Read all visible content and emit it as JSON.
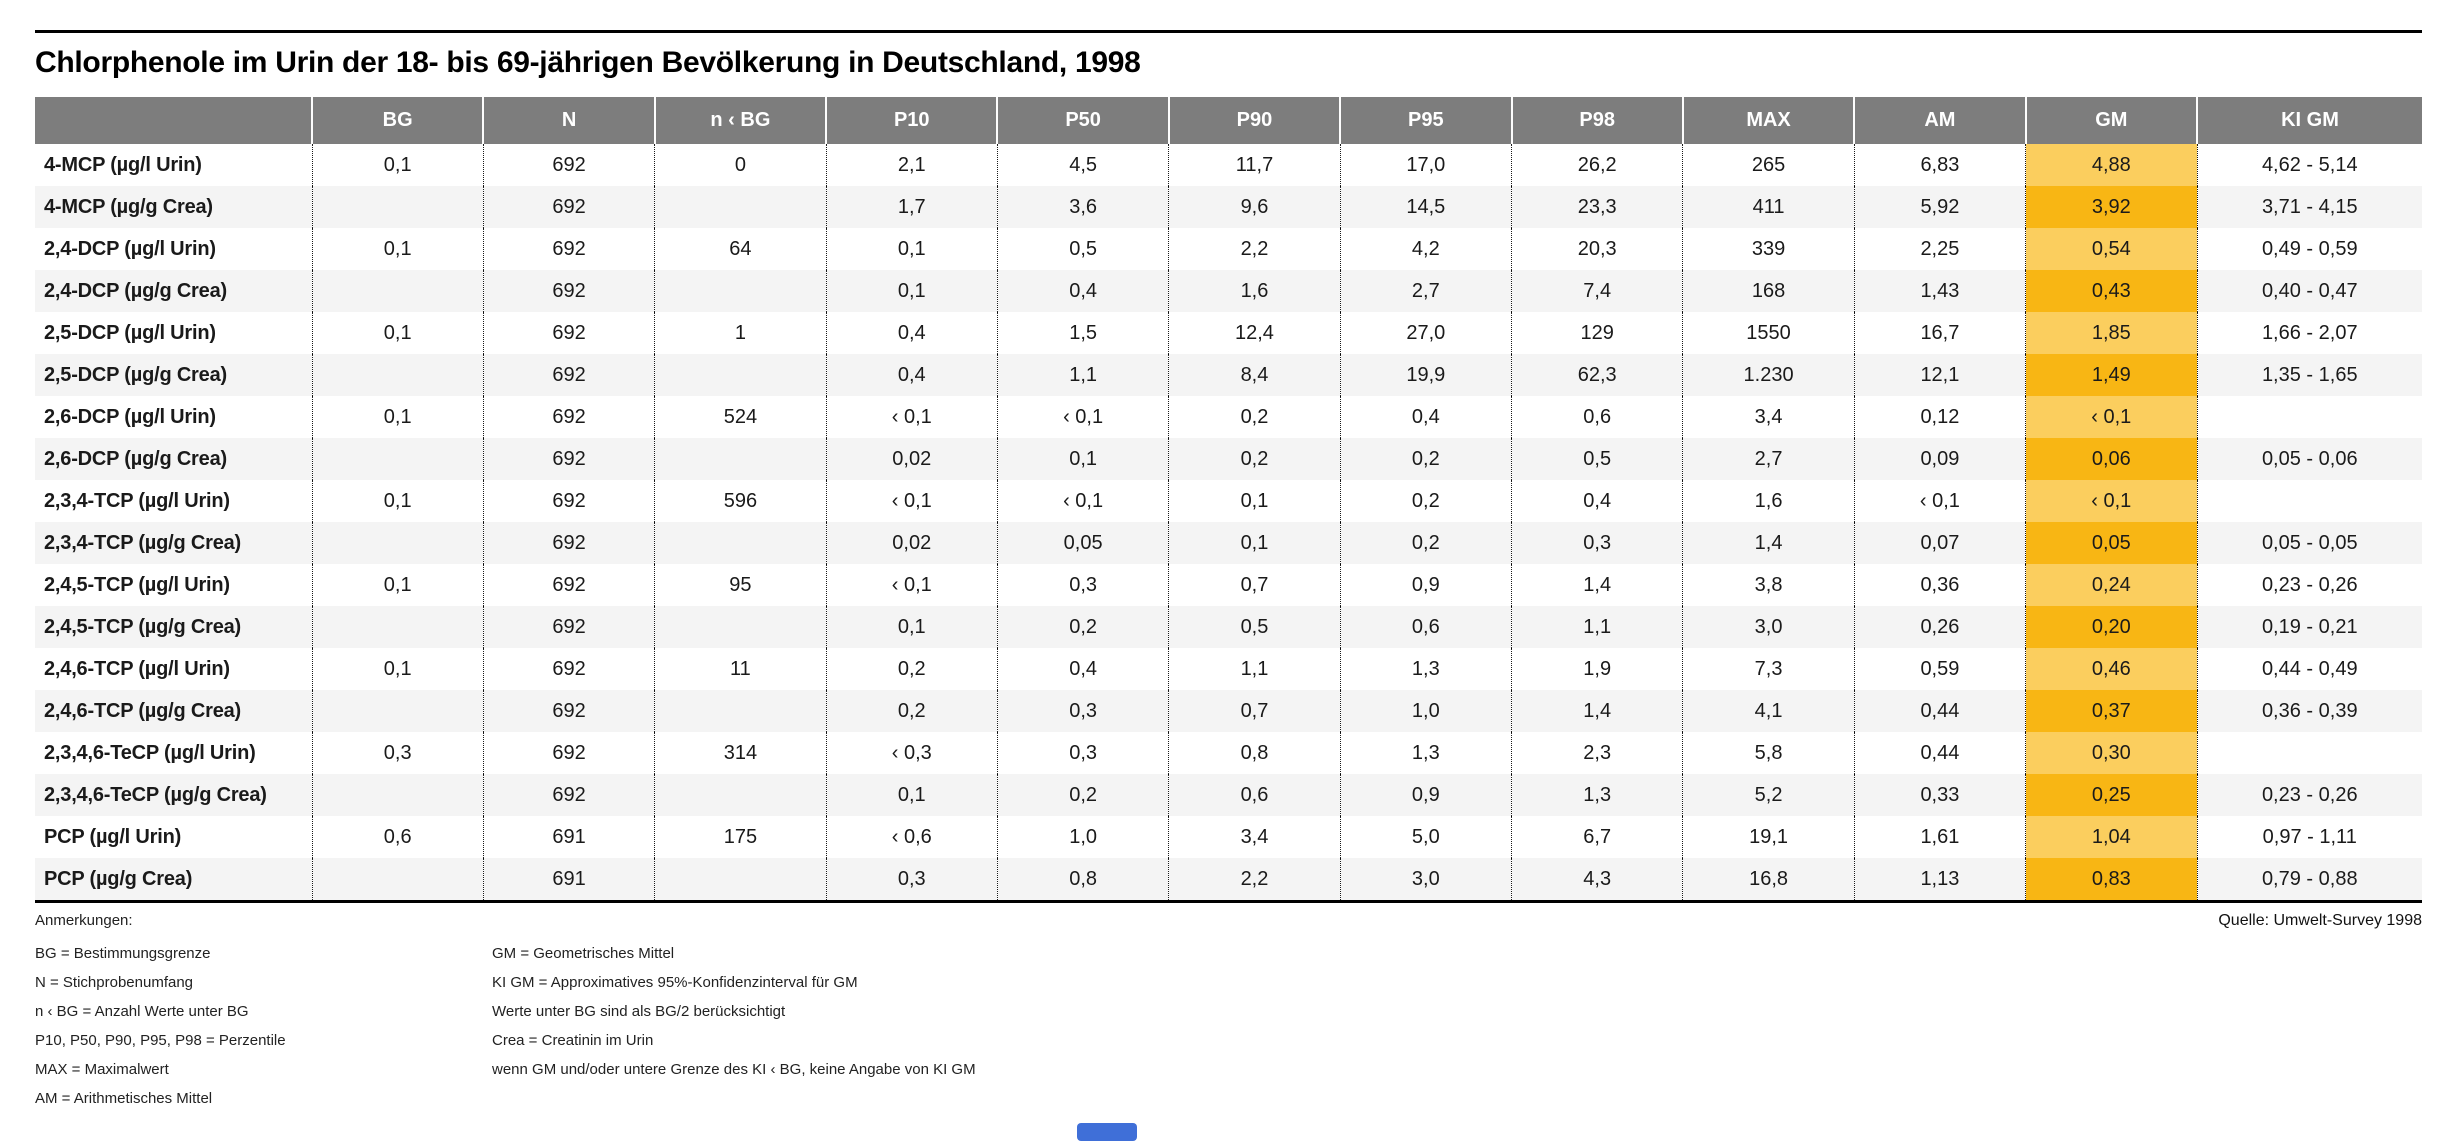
{
  "title": "Chlorphenole im Urin der 18- bis 69-jährigen Bevölkerung in Deutschland, 1998",
  "colors": {
    "header_bg": "#7d7d7d",
    "row_alt_bg": "#f4f4f4",
    "gm_highlight_light": "#fbce5e",
    "gm_highlight_dark": "#f8b614",
    "marker_blue": "#3f6fd8"
  },
  "table": {
    "columns": [
      "",
      "BG",
      "N",
      "n ‹ BG",
      "P10",
      "P50",
      "P90",
      "P95",
      "P98",
      "MAX",
      "AM",
      "GM",
      "KI GM"
    ],
    "highlight_column": "GM",
    "rows": [
      {
        "label": "4-MCP (µg/l Urin)",
        "values": [
          "0,1",
          "692",
          "0",
          "2,1",
          "4,5",
          "11,7",
          "17,0",
          "26,2",
          "265",
          "6,83",
          "4,88",
          "4,62 - 5,14"
        ]
      },
      {
        "label": "4-MCP (µg/g Crea)",
        "values": [
          "",
          "692",
          "",
          "1,7",
          "3,6",
          "9,6",
          "14,5",
          "23,3",
          "411",
          "5,92",
          "3,92",
          "3,71 - 4,15"
        ]
      },
      {
        "label": "2,4-DCP (µg/l Urin)",
        "values": [
          "0,1",
          "692",
          "64",
          "0,1",
          "0,5",
          "2,2",
          "4,2",
          "20,3",
          "339",
          "2,25",
          "0,54",
          "0,49 - 0,59"
        ]
      },
      {
        "label": "2,4-DCP (µg/g Crea)",
        "values": [
          "",
          "692",
          "",
          "0,1",
          "0,4",
          "1,6",
          "2,7",
          "7,4",
          "168",
          "1,43",
          "0,43",
          "0,40 - 0,47"
        ]
      },
      {
        "label": "2,5-DCP (µg/l Urin)",
        "values": [
          "0,1",
          "692",
          "1",
          "0,4",
          "1,5",
          "12,4",
          "27,0",
          "129",
          "1550",
          "16,7",
          "1,85",
          "1,66 - 2,07"
        ]
      },
      {
        "label": "2,5-DCP (µg/g Crea)",
        "values": [
          "",
          "692",
          "",
          "0,4",
          "1,1",
          "8,4",
          "19,9",
          "62,3",
          "1.230",
          "12,1",
          "1,49",
          "1,35 - 1,65"
        ]
      },
      {
        "label": "2,6-DCP (µg/l Urin)",
        "values": [
          "0,1",
          "692",
          "524",
          "‹ 0,1",
          "‹ 0,1",
          "0,2",
          "0,4",
          "0,6",
          "3,4",
          "0,12",
          "‹ 0,1",
          ""
        ]
      },
      {
        "label": "2,6-DCP (µg/g Crea)",
        "values": [
          "",
          "692",
          "",
          "0,02",
          "0,1",
          "0,2",
          "0,2",
          "0,5",
          "2,7",
          "0,09",
          "0,06",
          "0,05 - 0,06"
        ]
      },
      {
        "label": "2,3,4-TCP (µg/l Urin)",
        "values": [
          "0,1",
          "692",
          "596",
          "‹ 0,1",
          "‹ 0,1",
          "0,1",
          "0,2",
          "0,4",
          "1,6",
          "‹ 0,1",
          "‹ 0,1",
          ""
        ]
      },
      {
        "label": "2,3,4-TCP (µg/g Crea)",
        "values": [
          "",
          "692",
          "",
          "0,02",
          "0,05",
          "0,1",
          "0,2",
          "0,3",
          "1,4",
          "0,07",
          "0,05",
          "0,05 - 0,05"
        ]
      },
      {
        "label": "2,4,5-TCP (µg/l Urin)",
        "values": [
          "0,1",
          "692",
          "95",
          "‹ 0,1",
          "0,3",
          "0,7",
          "0,9",
          "1,4",
          "3,8",
          "0,36",
          "0,24",
          "0,23 - 0,26"
        ]
      },
      {
        "label": "2,4,5-TCP (µg/g Crea)",
        "values": [
          "",
          "692",
          "",
          "0,1",
          "0,2",
          "0,5",
          "0,6",
          "1,1",
          "3,0",
          "0,26",
          "0,20",
          "0,19 - 0,21"
        ]
      },
      {
        "label": "2,4,6-TCP (µg/l Urin)",
        "values": [
          "0,1",
          "692",
          "11",
          "0,2",
          "0,4",
          "1,1",
          "1,3",
          "1,9",
          "7,3",
          "0,59",
          "0,46",
          "0,44 - 0,49"
        ]
      },
      {
        "label": "2,4,6-TCP (µg/g Crea)",
        "values": [
          "",
          "692",
          "",
          "0,2",
          "0,3",
          "0,7",
          "1,0",
          "1,4",
          "4,1",
          "0,44",
          "0,37",
          "0,36 - 0,39"
        ]
      },
      {
        "label": "2,3,4,6-TeCP (µg/l Urin)",
        "values": [
          "0,3",
          "692",
          "314",
          "‹ 0,3",
          "0,3",
          "0,8",
          "1,3",
          "2,3",
          "5,8",
          "0,44",
          "0,30",
          ""
        ]
      },
      {
        "label": "2,3,4,6-TeCP (µg/g Crea)",
        "values": [
          "",
          "692",
          "",
          "0,1",
          "0,2",
          "0,6",
          "0,9",
          "1,3",
          "5,2",
          "0,33",
          "0,25",
          "0,23 - 0,26"
        ]
      },
      {
        "label": "PCP (µg/l Urin)",
        "values": [
          "0,6",
          "691",
          "175",
          "‹ 0,6",
          "1,0",
          "3,4",
          "5,0",
          "6,7",
          "19,1",
          "1,61",
          "1,04",
          "0,97 - 1,11"
        ]
      },
      {
        "label": "PCP (µg/g Crea)",
        "values": [
          "",
          "691",
          "",
          "0,3",
          "0,8",
          "2,2",
          "3,0",
          "4,3",
          "16,8",
          "1,13",
          "0,83",
          "0,79 - 0,88"
        ]
      }
    ]
  },
  "notes": {
    "heading": "Anmerkungen:",
    "column1": [
      "BG = Bestimmungsgrenze",
      "N = Stichprobenumfang",
      "n ‹ BG = Anzahl Werte unter BG",
      "P10, P50, P90, P95, P98 = Perzentile",
      "MAX = Maximalwert",
      "AM = Arithmetisches Mittel"
    ],
    "column2": [
      "GM = Geometrisches Mittel",
      "KI GM = Approximatives 95%-Konfidenzinterval für GM",
      "Werte unter BG sind als BG/2 berücksichtigt",
      "Crea = Creatinin im Urin",
      "wenn GM und/oder untere Grenze des KI ‹ BG, keine Angabe von KI GM"
    ]
  },
  "source": "Quelle: Umwelt-Survey 1998"
}
